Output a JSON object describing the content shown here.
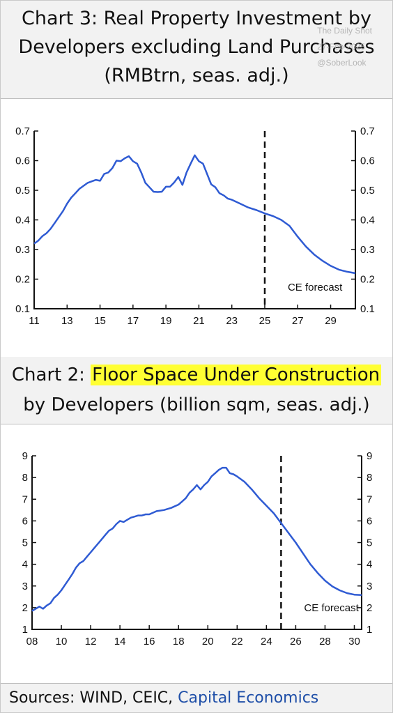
{
  "watermark": {
    "line1": "The Daily Shot",
    "line2": "27-Feb-2025",
    "line3": "@SoberLook"
  },
  "charts": [
    {
      "title_lines": [
        "Chart 3: Real Property Investment by",
        "Developers excluding Land Purchases",
        "(RMBtrn, seas. adj.)"
      ],
      "forecast_label": "CE forecast"
    },
    {
      "title_prefix": "Chart 2: ",
      "title_highlight": "Floor Space Under Construction",
      "title_line2": "by Developers (billion sqm, seas. adj.)",
      "forecast_label": "CE forecast"
    }
  ],
  "sources": {
    "prefix": "Sources: WIND, CEIC, ",
    "link": "Capital Economics"
  },
  "colors": {
    "line": "#2f5bd3",
    "highlight": "#ffff33",
    "band": "#f2f2f2",
    "link": "#1f4fa8"
  },
  "chart_data": [
    {
      "type": "line",
      "title": "Chart 3: Real Property Investment by Developers excluding Land Purchases (RMBtrn, seas. adj.)",
      "xlim": [
        11,
        30.5
      ],
      "ylim": [
        0.1,
        0.7
      ],
      "x_ticks": [
        "11",
        "13",
        "15",
        "17",
        "19",
        "21",
        "23",
        "25",
        "27",
        "29"
      ],
      "x_tick_values": [
        11,
        13,
        15,
        17,
        19,
        21,
        23,
        25,
        27,
        29
      ],
      "y_ticks": [
        "0.1",
        "0.2",
        "0.3",
        "0.4",
        "0.5",
        "0.6",
        "0.7"
      ],
      "y_tick_values": [
        0.1,
        0.2,
        0.3,
        0.4,
        0.5,
        0.6,
        0.7
      ],
      "forecast_x": 25,
      "grid": false,
      "series": [
        {
          "x": [
            11.0,
            11.25,
            11.5,
            11.75,
            12.0,
            12.25,
            12.5,
            12.75,
            13.0,
            13.25,
            13.5,
            13.75,
            14.0,
            14.25,
            14.5,
            14.75,
            15.0,
            15.25,
            15.5,
            15.75,
            16.0,
            16.25,
            16.5,
            16.75,
            17.0,
            17.25,
            17.5,
            17.75,
            18.0,
            18.25,
            18.5,
            18.75,
            19.0,
            19.25,
            19.5,
            19.75,
            20.0,
            20.25,
            20.5,
            20.75,
            21.0,
            21.25,
            21.5,
            21.75,
            22.0,
            22.25,
            22.5,
            22.75,
            23.0,
            23.5,
            24.0,
            24.5,
            25.0,
            25.5,
            26.0,
            26.5,
            27.0,
            27.5,
            28.0,
            28.5,
            29.0,
            29.5,
            30.0,
            30.5
          ],
          "y": [
            0.32,
            0.33,
            0.345,
            0.355,
            0.37,
            0.39,
            0.41,
            0.43,
            0.455,
            0.475,
            0.49,
            0.505,
            0.515,
            0.525,
            0.53,
            0.535,
            0.532,
            0.555,
            0.56,
            0.575,
            0.6,
            0.598,
            0.608,
            0.615,
            0.598,
            0.59,
            0.56,
            0.525,
            0.51,
            0.495,
            0.494,
            0.495,
            0.512,
            0.512,
            0.526,
            0.545,
            0.518,
            0.56,
            0.59,
            0.618,
            0.598,
            0.59,
            0.555,
            0.52,
            0.51,
            0.49,
            0.483,
            0.472,
            0.468,
            0.455,
            0.442,
            0.433,
            0.422,
            0.413,
            0.4,
            0.38,
            0.343,
            0.31,
            0.283,
            0.262,
            0.245,
            0.232,
            0.225,
            0.22
          ]
        }
      ]
    },
    {
      "type": "line",
      "title": "Chart 2: Floor Space Under Construction by Developers (billion sqm, seas. adj.)",
      "xlim": [
        8,
        30.5
      ],
      "ylim": [
        1,
        9
      ],
      "x_ticks": [
        "08",
        "10",
        "12",
        "14",
        "16",
        "18",
        "20",
        "22",
        "24",
        "26",
        "28",
        "30"
      ],
      "x_tick_values": [
        8,
        10,
        12,
        14,
        16,
        18,
        20,
        22,
        24,
        26,
        28,
        30
      ],
      "y_ticks": [
        "1",
        "2",
        "3",
        "4",
        "5",
        "6",
        "7",
        "8",
        "9"
      ],
      "y_tick_values": [
        1,
        2,
        3,
        4,
        5,
        6,
        7,
        8,
        9
      ],
      "forecast_x": 25,
      "grid": false,
      "series": [
        {
          "x": [
            8.0,
            8.25,
            8.5,
            8.75,
            9.0,
            9.25,
            9.5,
            9.75,
            10.0,
            10.25,
            10.5,
            10.75,
            11.0,
            11.25,
            11.5,
            11.75,
            12.0,
            12.25,
            12.5,
            12.75,
            13.0,
            13.25,
            13.5,
            13.75,
            14.0,
            14.25,
            14.5,
            14.75,
            15.0,
            15.25,
            15.5,
            15.75,
            16.0,
            16.5,
            17.0,
            17.5,
            18.0,
            18.25,
            18.5,
            18.75,
            19.0,
            19.25,
            19.5,
            19.75,
            20.0,
            20.25,
            20.5,
            20.75,
            21.0,
            21.25,
            21.5,
            21.75,
            22.0,
            22.5,
            23.0,
            23.5,
            24.0,
            24.5,
            25.0,
            25.5,
            26.0,
            26.5,
            27.0,
            27.5,
            28.0,
            28.5,
            29.0,
            29.5,
            30.0,
            30.5
          ],
          "y": [
            1.85,
            1.95,
            2.05,
            1.95,
            2.1,
            2.2,
            2.45,
            2.6,
            2.8,
            3.05,
            3.3,
            3.55,
            3.85,
            4.05,
            4.15,
            4.35,
            4.55,
            4.75,
            4.95,
            5.15,
            5.35,
            5.55,
            5.65,
            5.85,
            6.0,
            5.95,
            6.05,
            6.15,
            6.2,
            6.25,
            6.25,
            6.3,
            6.3,
            6.45,
            6.5,
            6.6,
            6.75,
            6.9,
            7.05,
            7.3,
            7.45,
            7.65,
            7.45,
            7.65,
            7.8,
            8.05,
            8.2,
            8.35,
            8.45,
            8.45,
            8.2,
            8.15,
            8.05,
            7.8,
            7.45,
            7.05,
            6.7,
            6.35,
            5.9,
            5.45,
            5.0,
            4.5,
            4.0,
            3.6,
            3.25,
            2.98,
            2.8,
            2.67,
            2.6,
            2.58
          ]
        }
      ]
    }
  ]
}
